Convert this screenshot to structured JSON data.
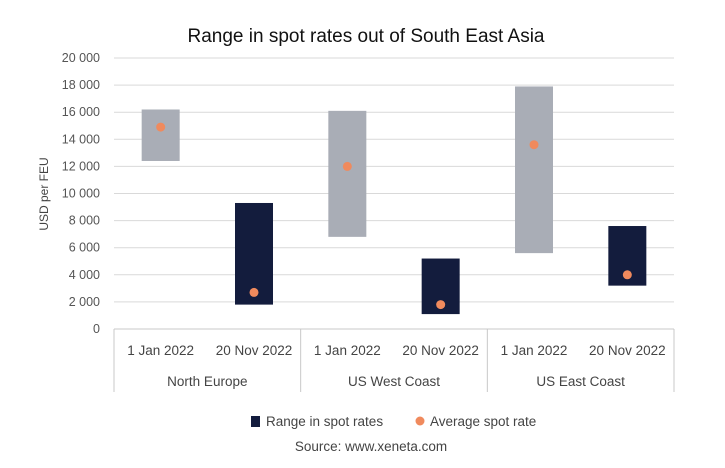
{
  "chart_data": {
    "type": "floating-bar",
    "title": "Range in spot rates out of South East Asia",
    "ylabel": "USD per FEU",
    "ylim": [
      0,
      20000
    ],
    "yticks": [
      0,
      2000,
      4000,
      6000,
      8000,
      10000,
      12000,
      14000,
      16000,
      18000,
      20000
    ],
    "ytick_labels": [
      "0",
      "2 000",
      "4 000",
      "6 000",
      "8 000",
      "10 000",
      "12 000",
      "14 000",
      "16 000",
      "18 000",
      "20 000"
    ],
    "groups": [
      "North Europe",
      "US West Coast",
      "US East Coast"
    ],
    "categories": [
      {
        "group": "North Europe",
        "label": "1 Jan 2022",
        "low": 12400,
        "high": 16200,
        "average": 14900,
        "color": "#a9adb6"
      },
      {
        "group": "North Europe",
        "label": "20 Nov 2022",
        "low": 1800,
        "high": 9300,
        "average": 2700,
        "color": "#131c3d"
      },
      {
        "group": "US West Coast",
        "label": "1 Jan 2022",
        "low": 6800,
        "high": 16100,
        "average": 12000,
        "color": "#a9adb6"
      },
      {
        "group": "US West Coast",
        "label": "20 Nov 2022",
        "low": 1100,
        "high": 5200,
        "average": 1800,
        "color": "#131c3d"
      },
      {
        "group": "US East Coast",
        "label": "1 Jan 2022",
        "low": 5600,
        "high": 17900,
        "average": 13600,
        "color": "#a9adb6"
      },
      {
        "group": "US East Coast",
        "label": "20 Nov 2022",
        "low": 3200,
        "high": 7600,
        "average": 4000,
        "color": "#131c3d"
      }
    ],
    "average_color": "#f08a5d",
    "legend": [
      {
        "label": "Range in spot rates",
        "marker": "square",
        "color": "#131c3d"
      },
      {
        "label": "Average spot rate",
        "marker": "dot",
        "color": "#f08a5d"
      }
    ],
    "legend_position": "bottom",
    "grid": true,
    "source": "Source: www.xeneta.com"
  }
}
